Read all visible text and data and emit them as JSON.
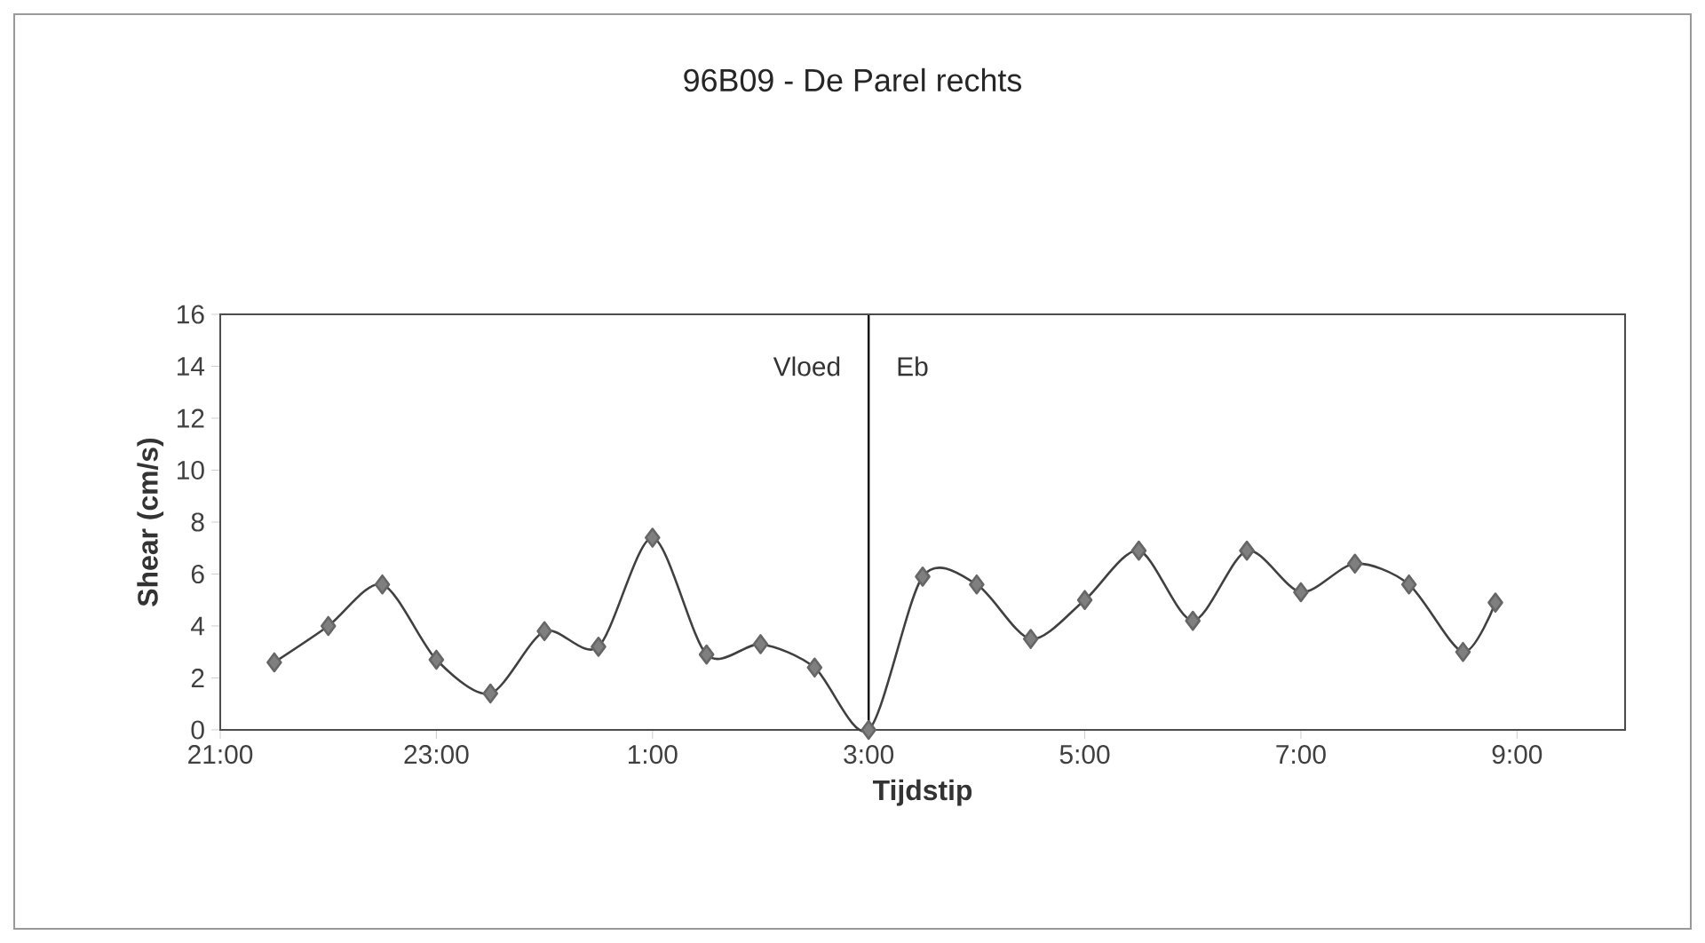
{
  "chart_data": {
    "type": "line",
    "title": "96B09 - De Parel rechts",
    "xlabel": "Tijdstip",
    "ylabel": "Shear (cm/s)",
    "x": [
      "2000-01-01T21:30",
      "2000-01-01T22:00",
      "2000-01-01T22:30",
      "2000-01-01T23:00",
      "2000-01-01T23:30",
      "2000-01-02T00:00",
      "2000-01-02T00:30",
      "2000-01-02T01:00",
      "2000-01-02T01:30",
      "2000-01-02T02:00",
      "2000-01-02T02:30",
      "2000-01-02T03:00",
      "2000-01-02T03:30",
      "2000-01-02T04:00",
      "2000-01-02T04:30",
      "2000-01-02T05:00",
      "2000-01-02T05:30",
      "2000-01-02T06:00",
      "2000-01-02T06:30",
      "2000-01-02T07:00",
      "2000-01-02T07:30",
      "2000-01-02T08:00",
      "2000-01-02T08:30",
      "2000-01-02T08:48"
    ],
    "series": [
      {
        "color": "#7f7f7f",
        "values": [
          2.6,
          4.0,
          5.6,
          2.7,
          1.4,
          3.8,
          3.2,
          7.4,
          2.9,
          3.3,
          2.4,
          0,
          5.9,
          5.6,
          3.5,
          5.0,
          6.9,
          4.2,
          6.9,
          5.3,
          6.4,
          5.6,
          3.0,
          4.9
        ]
      }
    ],
    "xlim": [
      "2000-01-01T21:00",
      "2000-01-02T10:00"
    ],
    "xticks": [
      {
        "value": "2000-01-01T21:00",
        "label": "21:00"
      },
      {
        "value": "2000-01-01T23:00",
        "label": "23:00"
      },
      {
        "value": "2000-01-02T01:00",
        "label": "1:00"
      },
      {
        "value": "2000-01-02T03:00",
        "label": "3:00"
      },
      {
        "value": "2000-01-02T05:00",
        "label": "5:00"
      },
      {
        "value": "2000-01-02T07:00",
        "label": "7:00"
      },
      {
        "value": "2000-01-02T09:00",
        "label": "9:00"
      }
    ],
    "ylim": [
      0,
      16
    ],
    "yticks": [
      0,
      2,
      4,
      6,
      8,
      10,
      12,
      14,
      16
    ],
    "ref_lines": [
      {
        "axis": "x",
        "value": "2000-01-02T03:00",
        "color": "#000000"
      }
    ],
    "annotations": [
      "Vloed",
      "Eb"
    ],
    "marker": "diamond",
    "grid": false
  }
}
